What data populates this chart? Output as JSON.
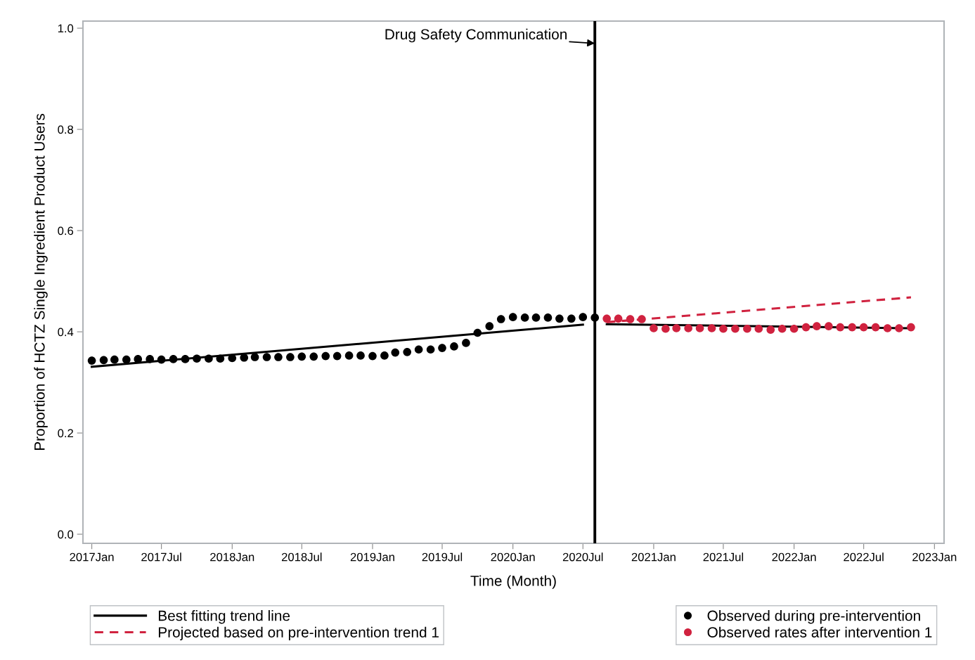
{
  "chart_data": {
    "type": "scatter",
    "xlabel": "Time (Month)",
    "ylabel": "Proportion of HCTZ Single Ingredient Product Users",
    "xlim": [
      "2016-12-09",
      "2023-01-26"
    ],
    "xticks": [
      {
        "value": "2017-01",
        "label": "2017Jan"
      },
      {
        "value": "2017-07",
        "label": "2017Jul"
      },
      {
        "value": "2018-01",
        "label": "2018Jan"
      },
      {
        "value": "2018-07",
        "label": "2018Jul"
      },
      {
        "value": "2019-01",
        "label": "2019Jan"
      },
      {
        "value": "2019-07",
        "label": "2019Jul"
      },
      {
        "value": "2020-01",
        "label": "2020Jan"
      },
      {
        "value": "2020-07",
        "label": "2020Jul"
      },
      {
        "value": "2021-01",
        "label": "2021Jan"
      },
      {
        "value": "2021-07",
        "label": "2021Jul"
      },
      {
        "value": "2022-01",
        "label": "2022Jan"
      },
      {
        "value": "2022-07",
        "label": "2022Jul"
      },
      {
        "value": "2023-01",
        "label": "2023Jan"
      }
    ],
    "ylim": [
      -0.018,
      1.014
    ],
    "yticks": [
      {
        "value": 0,
        "label": "0.0"
      },
      0.2,
      0.4,
      0.6,
      0.8,
      {
        "value": 1,
        "label": "1.0"
      }
    ],
    "grid": false,
    "legend": "bottom",
    "ref_lines": [
      {
        "axis": "x",
        "value": "2020-08",
        "color": "#000000"
      }
    ],
    "annotations": [
      {
        "text": "Drug Safety Communication",
        "x": "2020-08",
        "y": 0.97
      }
    ],
    "series": [
      {
        "name": "Best fitting trend line",
        "type": "line",
        "color": "#000000",
        "line_style": "solid",
        "marker": "none",
        "x": [
          "2017-01",
          "2020-07"
        ],
        "values": [
          0.331,
          0.414
        ]
      },
      {
        "type": "line",
        "color": "#000000",
        "line_style": "solid",
        "marker": "none",
        "x": [
          "2020-09",
          "2022-11"
        ],
        "values": [
          0.415,
          0.407
        ]
      },
      {
        "name": "Projected based on pre-intervention trend 1",
        "type": "line",
        "color": "#d0223f",
        "line_style": "dashed",
        "marker": "none",
        "x": [
          "2020-09",
          "2022-11"
        ],
        "values": [
          0.419,
          0.468
        ]
      },
      {
        "name": "Observed during pre-intervention",
        "type": "scatter",
        "color": "#000000",
        "marker": "circle",
        "x": [
          "2017-01",
          "2017-02",
          "2017-03",
          "2017-04",
          "2017-05",
          "2017-06",
          "2017-07",
          "2017-08",
          "2017-09",
          "2017-10",
          "2017-11",
          "2017-12",
          "2018-01",
          "2018-02",
          "2018-03",
          "2018-04",
          "2018-05",
          "2018-06",
          "2018-07",
          "2018-08",
          "2018-09",
          "2018-10",
          "2018-11",
          "2018-12",
          "2019-01",
          "2019-02",
          "2019-03",
          "2019-04",
          "2019-05",
          "2019-06",
          "2019-07",
          "2019-08",
          "2019-09",
          "2019-10",
          "2019-11",
          "2019-12",
          "2020-01",
          "2020-02",
          "2020-03",
          "2020-04",
          "2020-05",
          "2020-06",
          "2020-07",
          "2020-08"
        ],
        "values": [
          0.343,
          0.344,
          0.345,
          0.345,
          0.346,
          0.346,
          0.345,
          0.346,
          0.346,
          0.347,
          0.347,
          0.347,
          0.348,
          0.349,
          0.35,
          0.35,
          0.35,
          0.35,
          0.351,
          0.351,
          0.352,
          0.352,
          0.353,
          0.353,
          0.352,
          0.353,
          0.359,
          0.36,
          0.365,
          0.365,
          0.368,
          0.371,
          0.378,
          0.398,
          0.411,
          0.425,
          0.429,
          0.428,
          0.428,
          0.428,
          0.426,
          0.426,
          0.429,
          0.428
        ]
      },
      {
        "name": "Observed rates after intervention 1",
        "type": "scatter",
        "color": "#d0223f",
        "marker": "circle",
        "x": [
          "2020-09",
          "2020-10",
          "2020-11",
          "2020-12",
          "2021-01",
          "2021-02",
          "2021-03",
          "2021-04",
          "2021-05",
          "2021-06",
          "2021-07",
          "2021-08",
          "2021-09",
          "2021-10",
          "2021-11",
          "2021-12",
          "2022-01",
          "2022-02",
          "2022-03",
          "2022-04",
          "2022-05",
          "2022-06",
          "2022-07",
          "2022-08",
          "2022-09",
          "2022-10",
          "2022-11"
        ],
        "values": [
          0.426,
          0.426,
          0.425,
          0.425,
          0.407,
          0.406,
          0.407,
          0.407,
          0.407,
          0.407,
          0.406,
          0.406,
          0.406,
          0.406,
          0.404,
          0.406,
          0.406,
          0.409,
          0.411,
          0.411,
          0.409,
          0.409,
          0.409,
          0.409,
          0.407,
          0.407,
          0.409
        ]
      }
    ]
  }
}
